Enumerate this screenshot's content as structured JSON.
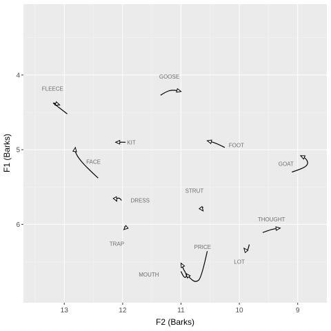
{
  "chart_data": {
    "type": "line",
    "xlabel": "F2 (Barks)",
    "ylabel": "F1 (Barks)",
    "x_reversed": true,
    "y_reversed": true,
    "xlim": [
      13.7,
      8.5
    ],
    "ylim": [
      3.05,
      7.05
    ],
    "x_ticks": [
      13,
      12,
      11,
      10,
      9
    ],
    "y_ticks": [
      4,
      5,
      6
    ],
    "grid": true,
    "legend": "none",
    "series": [
      {
        "name": "FLEECE",
        "label_pos": [
          13.2,
          4.18
        ],
        "points": [
          [
            12.95,
            4.52
          ],
          [
            13.05,
            4.46
          ],
          [
            13.15,
            4.4
          ],
          [
            13.2,
            4.37
          ],
          [
            13.15,
            4.38
          ],
          [
            13.08,
            4.4
          ]
        ]
      },
      {
        "name": "GOOSE",
        "label_pos": [
          11.2,
          4.02
        ],
        "points": [
          [
            11.35,
            4.27
          ],
          [
            11.25,
            4.22
          ],
          [
            11.15,
            4.2
          ],
          [
            11.05,
            4.21
          ],
          [
            11.0,
            4.22
          ]
        ]
      },
      {
        "name": "KIT",
        "label_pos": [
          11.85,
          4.9
        ],
        "points": [
          [
            11.95,
            4.9
          ],
          [
            12.05,
            4.9
          ],
          [
            12.12,
            4.9
          ]
        ]
      },
      {
        "name": "FOOT",
        "label_pos": [
          10.05,
          4.94
        ],
        "points": [
          [
            10.25,
            4.97
          ],
          [
            10.35,
            4.93
          ],
          [
            10.45,
            4.9
          ],
          [
            10.55,
            4.88
          ]
        ]
      },
      {
        "name": "FACE",
        "label_pos": [
          12.5,
          5.16
        ],
        "points": [
          [
            12.42,
            5.38
          ],
          [
            12.6,
            5.25
          ],
          [
            12.75,
            5.12
          ],
          [
            12.82,
            5.02
          ],
          [
            12.81,
            4.97
          ]
        ]
      },
      {
        "name": "GOAT",
        "label_pos": [
          9.2,
          5.19
        ],
        "points": [
          [
            9.1,
            5.3
          ],
          [
            8.95,
            5.26
          ],
          [
            8.85,
            5.22
          ],
          [
            8.82,
            5.17
          ],
          [
            8.87,
            5.11
          ],
          [
            8.95,
            5.08
          ]
        ]
      },
      {
        "name": "DRESS",
        "label_pos": [
          11.7,
          5.68
        ],
        "points": [
          [
            12.02,
            5.68
          ],
          [
            12.05,
            5.64
          ],
          [
            12.12,
            5.66
          ],
          [
            12.1,
            5.69
          ]
        ]
      },
      {
        "name": "STRUT",
        "label_pos": [
          10.77,
          5.55
        ],
        "points": [
          [
            10.62,
            5.77
          ],
          [
            10.65,
            5.79
          ],
          [
            10.62,
            5.82
          ]
        ]
      },
      {
        "name": "TRAP",
        "label_pos": [
          12.1,
          6.26
        ],
        "points": [
          [
            11.97,
            6.03
          ],
          [
            11.95,
            6.05
          ],
          [
            11.98,
            6.07
          ]
        ]
      },
      {
        "name": "THOUGHT",
        "label_pos": [
          9.45,
          5.93
        ],
        "points": [
          [
            9.6,
            6.11
          ],
          [
            9.5,
            6.08
          ],
          [
            9.4,
            6.06
          ],
          [
            9.3,
            6.05
          ]
        ]
      },
      {
        "name": "PRICE",
        "label_pos": [
          10.63,
          6.3
        ],
        "points": [
          [
            10.55,
            6.36
          ],
          [
            10.65,
            6.72
          ],
          [
            10.75,
            6.78
          ],
          [
            10.85,
            6.72
          ],
          [
            10.91,
            6.66
          ]
        ]
      },
      {
        "name": "LOT",
        "label_pos": [
          10.0,
          6.5
        ],
        "points": [
          [
            9.83,
            6.27
          ],
          [
            9.85,
            6.34
          ],
          [
            9.88,
            6.36
          ],
          [
            9.92,
            6.32
          ]
        ]
      },
      {
        "name": "MOUTH",
        "label_pos": [
          11.55,
          6.67
        ],
        "points": [
          [
            11.0,
            6.63
          ],
          [
            10.95,
            6.72
          ],
          [
            10.9,
            6.7
          ],
          [
            10.92,
            6.65
          ],
          [
            10.96,
            6.6
          ],
          [
            10.98,
            6.55
          ],
          [
            11.0,
            6.52
          ]
        ]
      }
    ]
  }
}
